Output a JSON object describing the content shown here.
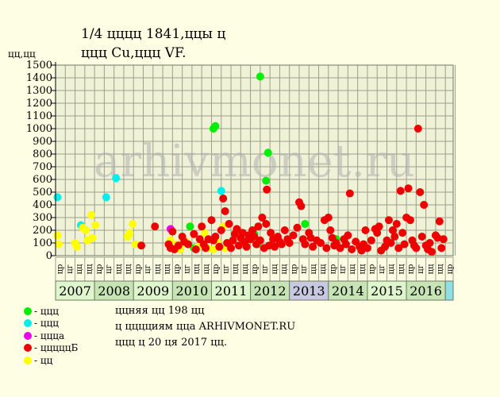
{
  "title_line1": "1/4 цццц 1841,ццы ц",
  "title_line2": "ццц Cu,ццц VF.",
  "watermark": "arhivmonet.ru",
  "notes": [
    "ццняя цц 198 цц",
    "ц цццциям цца ARHIVMONET.RU",
    "ццц ц 20 ця 2017 цц."
  ],
  "legend": [
    {
      "label": "- ццц",
      "color": "#00ee00"
    },
    {
      "label": "- ццц",
      "color": "#00eeee"
    },
    {
      "label": "- ццца",
      "color": "#ee00ee"
    },
    {
      "label": "- цццццБ",
      "color": "#ee0000"
    },
    {
      "label": "- цц",
      "color": "#ffff00"
    }
  ],
  "chart_data": {
    "type": "scatter",
    "ylabel": "цц,цц",
    "ylim": [
      0,
      1500
    ],
    "yticks": [
      0,
      100,
      200,
      300,
      400,
      500,
      600,
      700,
      800,
      900,
      1000,
      1100,
      1200,
      1300,
      1400,
      1500
    ],
    "x_domain": [
      2007,
      2017.2
    ],
    "years": [
      "2007",
      "2008",
      "2009",
      "2010",
      "2011",
      "2012",
      "2013",
      "2014",
      "2015",
      "2016"
    ],
    "quarter_labels": [
      "цр",
      "цг",
      "цц",
      "цц"
    ],
    "series": [
      {
        "color": "#00ee00",
        "points": [
          [
            2010.45,
            230
          ],
          [
            2010.55,
            60
          ],
          [
            2011.05,
            1000
          ],
          [
            2011.1,
            1020
          ],
          [
            2012.25,
            1410
          ],
          [
            2012.4,
            590
          ],
          [
            2012.45,
            810
          ],
          [
            2012.1,
            170
          ],
          [
            2012.18,
            90
          ],
          [
            2013.4,
            250
          ],
          [
            2014.2,
            130
          ]
        ]
      },
      {
        "color": "#00eeee",
        "points": [
          [
            2007.05,
            460
          ],
          [
            2007.65,
            240
          ],
          [
            2008.3,
            460
          ],
          [
            2008.55,
            610
          ],
          [
            2011.25,
            510
          ]
        ]
      },
      {
        "color": "#ee00ee",
        "points": [
          [
            2009.95,
            210
          ]
        ]
      },
      {
        "color": "#ffff00",
        "points": [
          [
            2007.05,
            160
          ],
          [
            2007.08,
            90
          ],
          [
            2007.5,
            100
          ],
          [
            2007.55,
            70
          ],
          [
            2007.7,
            220
          ],
          [
            2007.78,
            200
          ],
          [
            2007.82,
            120
          ],
          [
            2007.92,
            320
          ],
          [
            2007.95,
            140
          ],
          [
            2008.02,
            240
          ],
          [
            2008.85,
            150
          ],
          [
            2008.9,
            180
          ],
          [
            2008.98,
            250
          ],
          [
            2009.05,
            90
          ],
          [
            2009.95,
            120
          ],
          [
            2010.05,
            60
          ],
          [
            2010.12,
            90
          ],
          [
            2010.2,
            50
          ],
          [
            2010.3,
            100
          ],
          [
            2010.35,
            110
          ],
          [
            2010.62,
            60
          ],
          [
            2010.72,
            80
          ],
          [
            2010.82,
            180
          ],
          [
            2010.9,
            60
          ],
          [
            2011.05,
            50
          ],
          [
            2011.15,
            110
          ],
          [
            2011.3,
            230
          ],
          [
            2011.35,
            60
          ]
        ]
      },
      {
        "color": "#ee0000",
        "points": [
          [
            2009.2,
            80
          ],
          [
            2009.55,
            230
          ],
          [
            2009.9,
            90
          ],
          [
            2009.95,
            60
          ],
          [
            2010.0,
            190
          ],
          [
            2010.05,
            50
          ],
          [
            2010.15,
            80
          ],
          [
            2010.25,
            150
          ],
          [
            2010.3,
            110
          ],
          [
            2010.4,
            90
          ],
          [
            2010.55,
            170
          ],
          [
            2010.6,
            50
          ],
          [
            2010.7,
            130
          ],
          [
            2010.75,
            230
          ],
          [
            2010.8,
            90
          ],
          [
            2010.85,
            60
          ],
          [
            2010.92,
            130
          ],
          [
            2011.0,
            280
          ],
          [
            2011.05,
            120
          ],
          [
            2011.1,
            150
          ],
          [
            2011.2,
            70
          ],
          [
            2011.25,
            200
          ],
          [
            2011.3,
            450
          ],
          [
            2011.35,
            350
          ],
          [
            2011.4,
            100
          ],
          [
            2011.45,
            250
          ],
          [
            2011.5,
            60
          ],
          [
            2011.55,
            120
          ],
          [
            2011.6,
            170
          ],
          [
            2011.65,
            210
          ],
          [
            2011.7,
            80
          ],
          [
            2011.75,
            140
          ],
          [
            2011.8,
            180
          ],
          [
            2011.85,
            110
          ],
          [
            2011.9,
            70
          ],
          [
            2011.95,
            160
          ],
          [
            2012.0,
            130
          ],
          [
            2012.05,
            200
          ],
          [
            2012.1,
            150
          ],
          [
            2012.15,
            90
          ],
          [
            2012.2,
            230
          ],
          [
            2012.25,
            120
          ],
          [
            2012.3,
            300
          ],
          [
            2012.35,
            60
          ],
          [
            2012.4,
            250
          ],
          [
            2012.42,
            520
          ],
          [
            2012.48,
            80
          ],
          [
            2012.52,
            180
          ],
          [
            2012.58,
            130
          ],
          [
            2012.62,
            70
          ],
          [
            2012.7,
            150
          ],
          [
            2012.75,
            110
          ],
          [
            2012.8,
            90
          ],
          [
            2012.88,
            200
          ],
          [
            2012.95,
            130
          ],
          [
            2013.0,
            100
          ],
          [
            2013.1,
            160
          ],
          [
            2013.2,
            220
          ],
          [
            2013.25,
            420
          ],
          [
            2013.3,
            390
          ],
          [
            2013.35,
            130
          ],
          [
            2013.4,
            90
          ],
          [
            2013.5,
            180
          ],
          [
            2013.55,
            140
          ],
          [
            2013.6,
            70
          ],
          [
            2013.7,
            120
          ],
          [
            2013.8,
            100
          ],
          [
            2013.9,
            280
          ],
          [
            2013.95,
            60
          ],
          [
            2014.0,
            300
          ],
          [
            2014.05,
            200
          ],
          [
            2014.1,
            140
          ],
          [
            2014.15,
            80
          ],
          [
            2014.2,
            100
          ],
          [
            2014.3,
            60
          ],
          [
            2014.4,
            130
          ],
          [
            2014.45,
            90
          ],
          [
            2014.5,
            160
          ],
          [
            2014.55,
            490
          ],
          [
            2014.6,
            50
          ],
          [
            2014.7,
            110
          ],
          [
            2014.8,
            70
          ],
          [
            2014.85,
            40
          ],
          [
            2014.9,
            90
          ],
          [
            2014.95,
            200
          ],
          [
            2015.0,
            60
          ],
          [
            2015.1,
            120
          ],
          [
            2015.2,
            210
          ],
          [
            2015.25,
            180
          ],
          [
            2015.3,
            230
          ],
          [
            2015.35,
            40
          ],
          [
            2015.45,
            70
          ],
          [
            2015.5,
            120
          ],
          [
            2015.55,
            280
          ],
          [
            2015.6,
            100
          ],
          [
            2015.65,
            200
          ],
          [
            2015.7,
            150
          ],
          [
            2015.75,
            250
          ],
          [
            2015.8,
            60
          ],
          [
            2015.85,
            510
          ],
          [
            2015.9,
            180
          ],
          [
            2015.95,
            90
          ],
          [
            2016.0,
            300
          ],
          [
            2016.05,
            530
          ],
          [
            2016.1,
            280
          ],
          [
            2016.15,
            120
          ],
          [
            2016.2,
            80
          ],
          [
            2016.25,
            60
          ],
          [
            2016.3,
            1000
          ],
          [
            2016.35,
            500
          ],
          [
            2016.4,
            150
          ],
          [
            2016.45,
            400
          ],
          [
            2016.5,
            80
          ],
          [
            2016.55,
            50
          ],
          [
            2016.6,
            100
          ],
          [
            2016.65,
            30
          ],
          [
            2016.75,
            160
          ],
          [
            2016.8,
            140
          ],
          [
            2016.85,
            270
          ],
          [
            2016.9,
            60
          ],
          [
            2016.95,
            130
          ]
        ]
      }
    ]
  }
}
